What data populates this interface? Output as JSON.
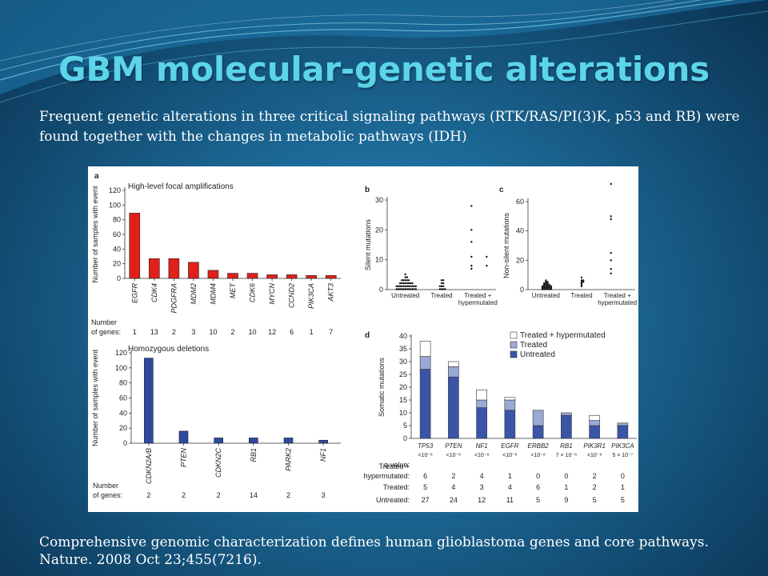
{
  "slide": {
    "title": "GBM molecular-genetic alterations",
    "intro": "Frequent genetic alterations in three critical signaling pathways (RTK/RAS/PI(3)K, p53 and RB) were found together with the changes in metabolic pathways (IDH)",
    "citation_line1": "Comprehensive genomic characterization defines human glioblastoma genes and core pathways.",
    "citation_line2": "Nature. 2008 Oct 23;455(7216).",
    "colors": {
      "title": "#5cd4ea",
      "amplification_bar": "#e0201b",
      "deletion_bar": "#2d4a9e",
      "untreated": "#3a55a8",
      "treated": "#9aaad6",
      "hypermutated": "#ffffff"
    }
  },
  "chart_data": [
    {
      "panel": "a",
      "type": "bar",
      "title": "High-level focal amplifications",
      "ylabel": "Number of samples with event",
      "ylim": [
        0,
        120
      ],
      "yticks": [
        0,
        20,
        40,
        60,
        80,
        100,
        120
      ],
      "categories": [
        "EGFR",
        "CDK4",
        "PDGFRA",
        "MDM2",
        "MDM4",
        "MET",
        "CDK6",
        "MYCN",
        "CCND2",
        "PIK3CA",
        "AKT3"
      ],
      "values": [
        89,
        27,
        27,
        22,
        11,
        7,
        7,
        5,
        5,
        4,
        4
      ],
      "number_label": [
        "Number",
        "of genes:"
      ],
      "number_of_genes": [
        "1",
        "13",
        "2",
        "3",
        "10",
        "2",
        "10",
        "12",
        "6",
        "1",
        "7"
      ]
    },
    {
      "panel": "a",
      "type": "bar",
      "title": "Homozygous deletions",
      "ylabel": "Number of samples with event",
      "ylim": [
        0,
        120
      ],
      "yticks": [
        0,
        20,
        40,
        60,
        80,
        100,
        120
      ],
      "categories": [
        "CDKN2A/B",
        "PTEN",
        "CDKN2C",
        "RB1",
        "PARK2",
        "NF1"
      ],
      "values": [
        113,
        16,
        7,
        7,
        7,
        4
      ],
      "number_label": [
        "Number",
        "of genes:"
      ],
      "number_of_genes": [
        "2",
        "2",
        "2",
        "14",
        "2",
        "3"
      ]
    },
    {
      "panel": "b",
      "type": "scatter",
      "ylabel": "Silent mutations",
      "ylim": [
        0,
        30
      ],
      "yticks": [
        0,
        10,
        20,
        30
      ],
      "categories": [
        "Untreated",
        "Treated",
        "Treated + hypermutated"
      ],
      "points": {
        "Untreated": [
          0,
          0,
          0,
          0,
          0,
          0,
          0,
          0,
          0,
          0,
          0,
          0,
          1,
          1,
          1,
          1,
          1,
          1,
          1,
          1,
          1,
          1,
          1,
          1,
          2,
          2,
          2,
          2,
          2,
          2,
          2,
          2,
          3,
          3,
          3,
          3,
          3,
          4,
          4,
          5
        ],
        "Treated": [
          0,
          0,
          0,
          0,
          1,
          1,
          1,
          2,
          2,
          3,
          3
        ],
        "Treated + hypermutated": [
          28,
          20,
          16,
          11,
          11,
          8,
          8,
          7
        ]
      }
    },
    {
      "panel": "c",
      "type": "scatter",
      "ylabel": "Non-silent mutations",
      "ylim": [
        0,
        60
      ],
      "yticks": [
        0,
        20,
        40,
        60
      ],
      "categories": [
        "Untreated",
        "Treated",
        "Treated + hypermutated"
      ],
      "points": {
        "Untreated": [
          0,
          0,
          0,
          0,
          0,
          0,
          1,
          1,
          1,
          1,
          1,
          1,
          2,
          2,
          2,
          2,
          2,
          2,
          3,
          3,
          3,
          3,
          4,
          4,
          4,
          5,
          5,
          6
        ],
        "Treated": [
          2,
          3,
          4,
          5,
          5,
          6,
          6,
          8
        ],
        "Treated + hypermutated": [
          72,
          50,
          48,
          25,
          20,
          14,
          11
        ]
      }
    },
    {
      "panel": "d",
      "type": "bar",
      "stacked": true,
      "ylabel": "Somatic mutations",
      "ylim": [
        0,
        40
      ],
      "yticks": [
        0,
        5,
        10,
        15,
        20,
        25,
        30,
        35,
        40
      ],
      "categories": [
        "TP53",
        "PTEN",
        "NF1",
        "EGFR",
        "ERBB2",
        "RB1",
        "PIK3R1",
        "PIK3CA"
      ],
      "legend": [
        "Treated + hypermutated",
        "Treated",
        "Untreated"
      ],
      "q_value_label": "q-value:",
      "q_values": [
        "<10⁻⁸",
        "<10⁻⁸",
        "<10⁻⁸",
        "<10⁻⁸",
        "<10⁻⁸",
        "7 × 10⁻⁸",
        "<10⁻⁸",
        "5 × 10⁻⁷"
      ],
      "series": [
        {
          "name": "Untreated",
          "values": [
            27,
            24,
            12,
            11,
            5,
            9,
            5,
            5
          ]
        },
        {
          "name": "Treated",
          "values": [
            5,
            4,
            3,
            4,
            6,
            1,
            2,
            1
          ]
        },
        {
          "name": "Treated + hypermutated",
          "values": [
            6,
            2,
            4,
            1,
            0,
            0,
            2,
            0
          ]
        }
      ],
      "row_labels": [
        "Treated +",
        "hypermutated:",
        "Treated:",
        "Untreated:"
      ]
    }
  ]
}
